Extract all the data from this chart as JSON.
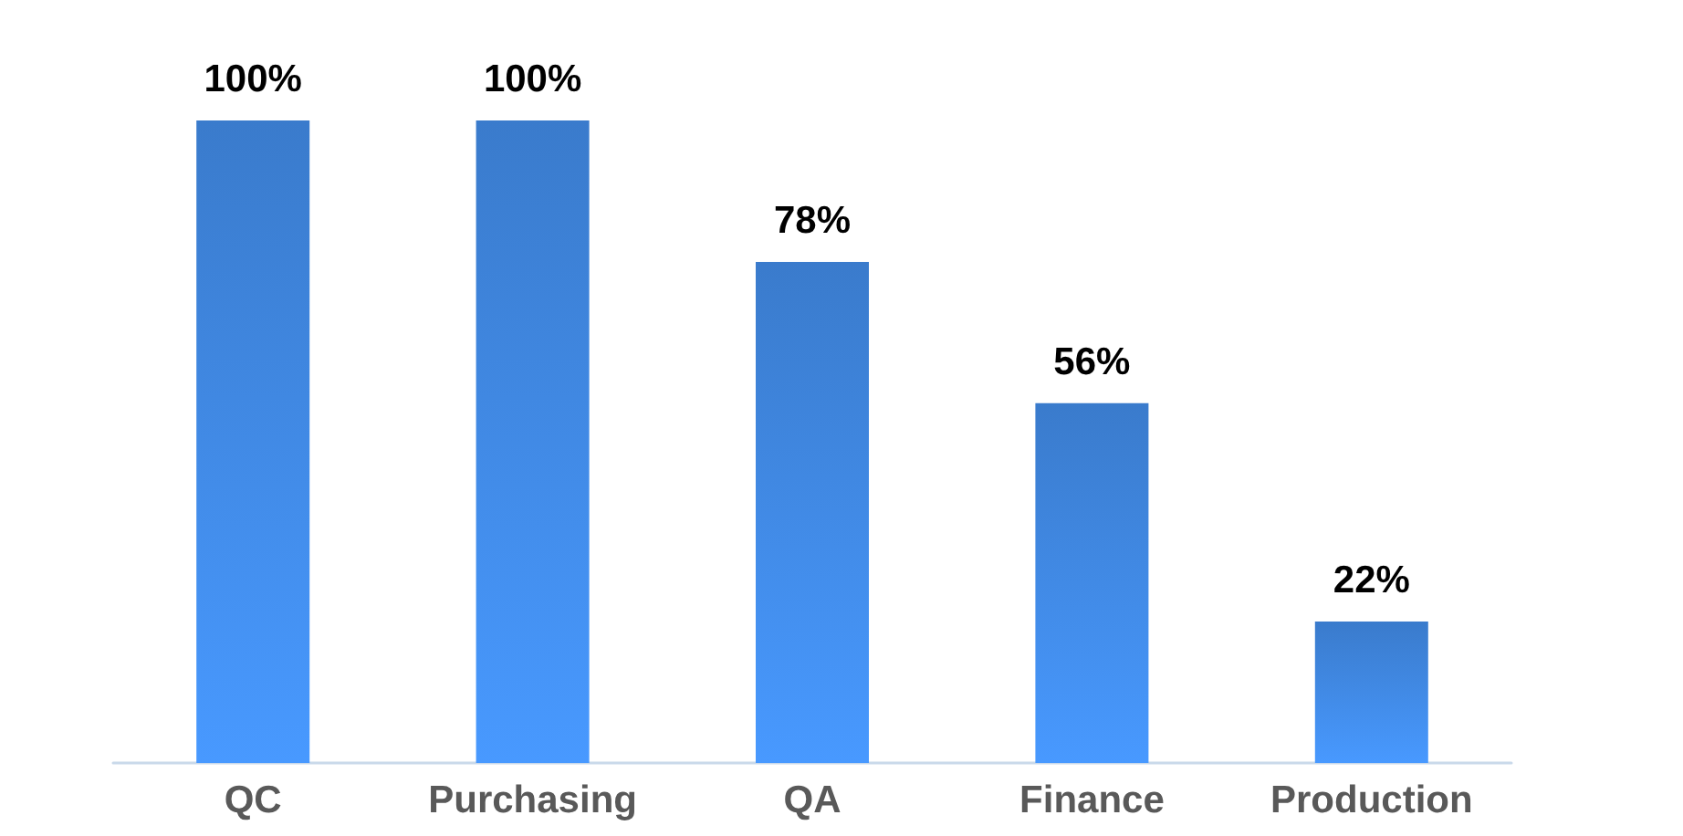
{
  "chart_data": {
    "type": "bar",
    "categories": [
      "QC",
      "Purchasing",
      "QA",
      "Finance",
      "Production"
    ],
    "values": [
      100,
      100,
      78,
      56,
      22
    ],
    "color": "#3a7bcc",
    "value_labels": [
      "100%",
      "100%",
      "78%",
      "56%",
      "22%"
    ]
  }
}
